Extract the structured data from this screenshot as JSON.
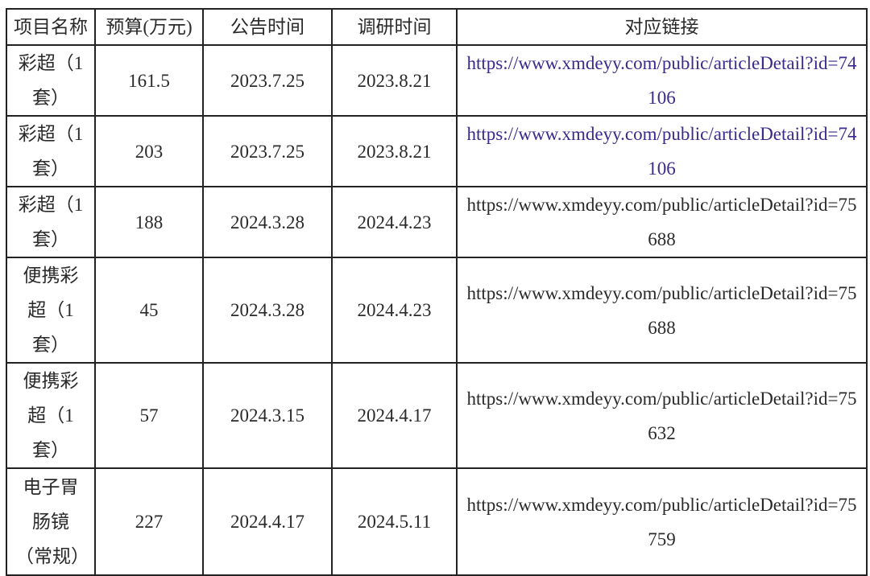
{
  "headers": [
    "项目名称",
    "预算(万元)",
    "公告时间",
    "调研时间",
    "对应链接"
  ],
  "rows": [
    {
      "name": "彩超（1套）",
      "budget": "161.5",
      "announce": "2023.7.25",
      "research": "2023.8.21",
      "link": "https://www.xmdeyy.com/public/articleDetail?id=74106",
      "link_style": "hyperlink"
    },
    {
      "name": "彩超（1套）",
      "budget": "203",
      "announce": "2023.7.25",
      "research": "2023.8.21",
      "link": "https://www.xmdeyy.com/public/articleDetail?id=74106",
      "link_style": "hyperlink"
    },
    {
      "name": "彩超（1套）",
      "budget": "188",
      "announce": "2024.3.28",
      "research": "2024.4.23",
      "link": "https://www.xmdeyy.com/public/articleDetail?id=75688",
      "link_style": "plain"
    },
    {
      "name": "便携彩超（1套）",
      "budget": "45",
      "announce": "2024.3.28",
      "research": "2024.4.23",
      "link": "https://www.xmdeyy.com/public/articleDetail?id=75688",
      "link_style": "plain"
    },
    {
      "name": "便携彩超（1套）",
      "budget": "57",
      "announce": "2024.3.15",
      "research": "2024.4.17",
      "link": "https://www.xmdeyy.com/public/articleDetail?id=75632",
      "link_style": "plain"
    },
    {
      "name": "电子胃肠镜（常规）",
      "budget": "227",
      "announce": "2024.4.17",
      "research": "2024.5.11",
      "link": "https://www.xmdeyy.com/public/articleDetail?id=75759",
      "link_style": "plain"
    }
  ],
  "colors": {
    "link": "#3b2a8c",
    "text": "#2a2a2a",
    "border": "#222222"
  }
}
